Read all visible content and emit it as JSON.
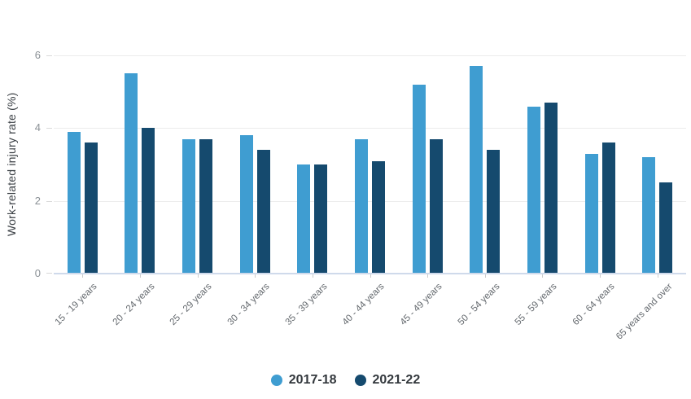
{
  "chart_data": {
    "type": "bar",
    "title": "",
    "xlabel": "",
    "ylabel": "Work-related injury rate (%)",
    "ylim": [
      0,
      6
    ],
    "yticks": [
      0,
      2,
      4,
      6
    ],
    "grid": true,
    "legend_position": "bottom",
    "categories": [
      "15 - 19 years",
      "20 - 24 years",
      "25 - 29 years",
      "30 - 34 years",
      "35 - 39 years",
      "40 - 44 years",
      "45 - 49 years",
      "50 - 54 years",
      "55 - 59 years",
      "60 - 64 years",
      "65 years and over"
    ],
    "series": [
      {
        "name": "2017-18",
        "color": "#3F9DD1",
        "values": [
          3.9,
          5.5,
          3.7,
          3.8,
          3.0,
          3.7,
          5.2,
          5.7,
          4.6,
          3.3,
          3.2
        ]
      },
      {
        "name": "2021-22",
        "color": "#154A6E",
        "values": [
          3.6,
          4.0,
          3.7,
          3.4,
          3.0,
          3.1,
          3.7,
          3.4,
          4.7,
          3.6,
          2.5
        ]
      }
    ]
  },
  "colors": {
    "background": "#FFFFFF",
    "gridline": "#ECECEC",
    "axis_line": "#CFDAEB",
    "y_tick_text": "#8A9095",
    "x_label_text": "#63686D",
    "y_title_text": "#3B4045",
    "legend_text": "#33383D",
    "series_2017_18": "#3F9DD1",
    "series_2021_22": "#154A6E"
  }
}
